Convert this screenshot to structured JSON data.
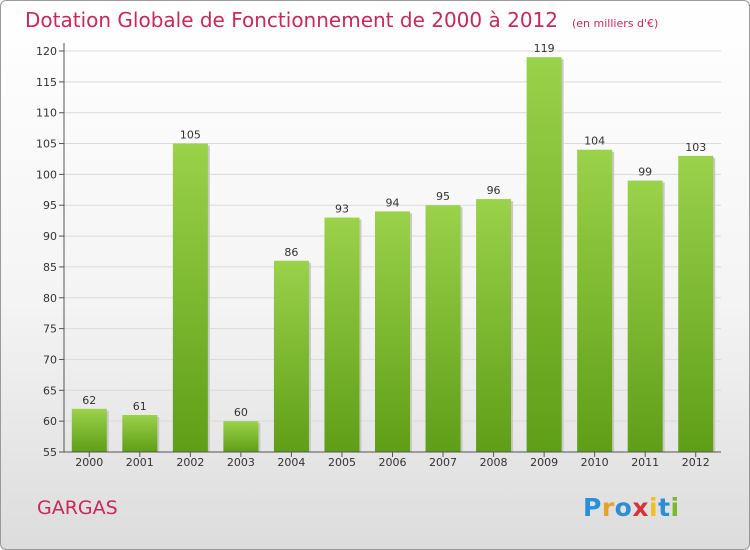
{
  "header": {
    "title": "Dotation Globale de Fonctionnement de 2000 à 2012",
    "subtitle": "(en milliers d'€)"
  },
  "footer": {
    "city": "GARGAS",
    "brand": {
      "letters": [
        "P",
        "r",
        "o",
        "x",
        "i",
        "t",
        "i"
      ],
      "colors": [
        "#2a8fd6",
        "#e8a12a",
        "#2a8fd6",
        "#d6333b",
        "#f0c020",
        "#2a8fd6",
        "#7cb82f"
      ]
    }
  },
  "chart_data": {
    "type": "bar",
    "categories": [
      "2000",
      "2001",
      "2002",
      "2003",
      "2004",
      "2005",
      "2006",
      "2007",
      "2008",
      "2009",
      "2010",
      "2011",
      "2012"
    ],
    "values": [
      62,
      61,
      105,
      60,
      86,
      93,
      94,
      95,
      96,
      119,
      104,
      99,
      103
    ],
    "yticks": [
      55,
      60,
      65,
      70,
      75,
      80,
      85,
      90,
      95,
      100,
      105,
      110,
      115,
      120
    ],
    "ylim": [
      55,
      120
    ],
    "grid": true,
    "bar_color": "#7cbf2e"
  }
}
